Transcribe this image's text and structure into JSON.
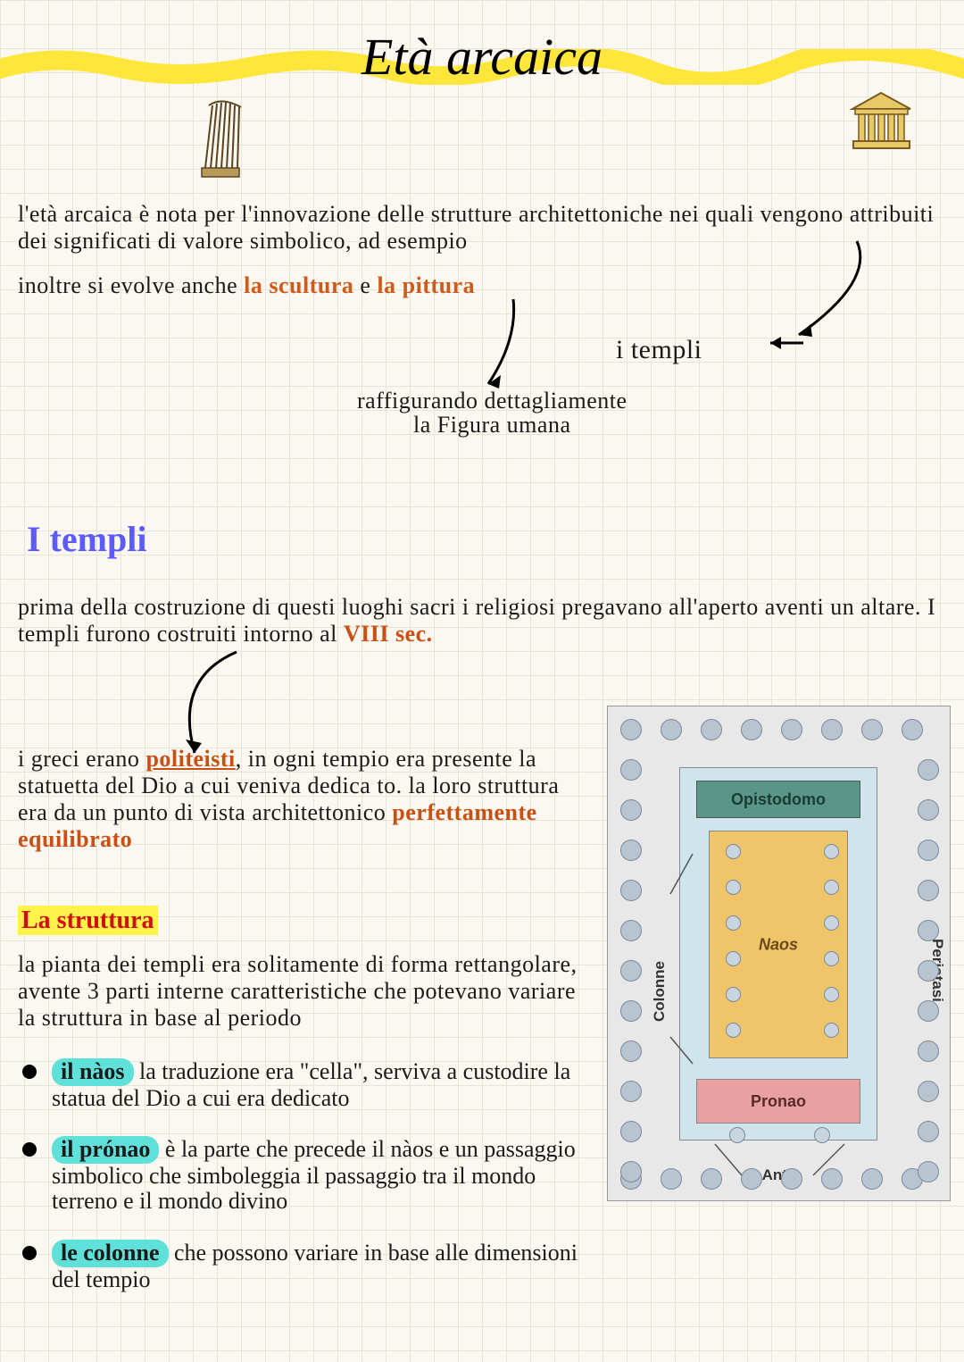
{
  "title": "Età arcaica",
  "intro": {
    "p1": "l'età arcaica è nota per l'innovazione delle strutture architettoniche nei quali vengono attribuiti dei significati di valore simbolico, ad esempio",
    "p2_a": "inoltre si evolve anche ",
    "p2_scultura": "la scultura",
    "p2_e": " e ",
    "p2_pittura": "la pittura",
    "templi_label": "i templi",
    "raffig_l1": "raffigurando dettagliamente",
    "raffig_l2": "la Figura umana"
  },
  "section1": {
    "heading": "I templi",
    "p3_a": "prima della costruzione di questi luoghi sacri i religiosi pregavano all'aperto aventi un altare. I templi furono costruiti intorno al ",
    "p3_sec": "VIII sec.",
    "p4_a": "i greci erano ",
    "p4_poli": "politeisti",
    "p4_b": ", in ogni tempio era presente la statuetta del Dio a cui veniva dedica to.  la loro struttura era da un punto di vista architettonico ",
    "p4_perf": "perfettamente equilibrato"
  },
  "struttura": {
    "heading": "La struttura",
    "p5": "la pianta dei templi era solitamente di forma rettangolare, avente 3 parti interne caratteristiche che potevano variare la struttura  in base al periodo",
    "b1_pill": "il nàos",
    "b1_txt": " la traduzione era \"cella\", serviva a custodire la statua del Dio a cui era dedicato",
    "b2_pill": "il prónao",
    "b2_txt": " è la parte che precede il nàos e un passaggio simbolico che simboleggia il passaggio tra il mondo terreno e il mondo divino",
    "b3_pill": "le colonne",
    "b3_txt": " che possono variare in base alle dimensioni del tempio"
  },
  "diagram": {
    "opistodomo": "Opistodomo",
    "naos": "Naos",
    "pronao": "Pronao",
    "colonne": "Colonne",
    "peristasi": "Peristasi",
    "ante": "Ante",
    "colors": {
      "bg": "#e8e8e8",
      "dot": "#b8c4d0",
      "inner": "#cfe4ec",
      "opis": "#5a9688",
      "naos": "#f0c56a",
      "pronao": "#e8a0a0"
    }
  },
  "style": {
    "title_color": "#000000",
    "section_color": "#5b5bff",
    "substruct_color": "#d01010",
    "highlight_yellow": "#fff24a",
    "pill_bg": "#5fe0d8",
    "orange": "#d05a1a",
    "wave_color": "#ffe63b"
  }
}
